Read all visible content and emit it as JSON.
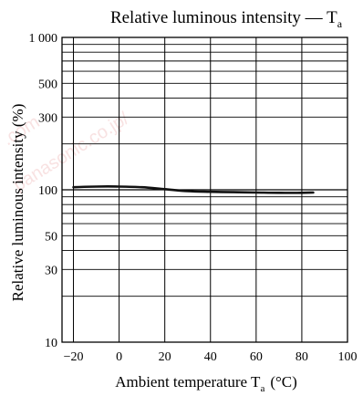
{
  "chart_data": {
    "type": "line",
    "title": "Relative luminous intensity — T",
    "title_subscript": "a",
    "xlabel": "Ambient temperature  T",
    "xlabel_subscript": "a",
    "xlabel_unit": "(°C)",
    "ylabel": "Relative luminous intensity  (%)",
    "x_ticks": [
      -20,
      0,
      20,
      40,
      60,
      80,
      100
    ],
    "x_tick_labels": [
      "−20",
      "0",
      "20",
      "40",
      "60",
      "80",
      "100"
    ],
    "y_tick_values": [
      10,
      30,
      50,
      100,
      300,
      500,
      1000
    ],
    "y_tick_labels": [
      "10",
      "30",
      "50",
      "100",
      "300",
      "500",
      "1 000"
    ],
    "y_scale": "log",
    "xlim": [
      -25,
      100
    ],
    "ylim": [
      10,
      1000
    ],
    "grid": true,
    "series": [
      {
        "x": [
          -20,
          -10,
          0,
          10,
          20,
          30,
          40,
          50,
          60,
          70,
          80,
          85
        ],
        "y": [
          104,
          105,
          105,
          104,
          101,
          98,
          97,
          96.5,
          96,
          95.5,
          95.5,
          96
        ]
      }
    ]
  }
}
